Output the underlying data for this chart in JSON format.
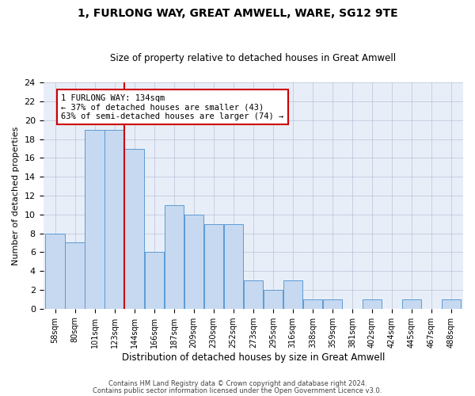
{
  "title": "1, FURLONG WAY, GREAT AMWELL, WARE, SG12 9TE",
  "subtitle": "Size of property relative to detached houses in Great Amwell",
  "xlabel": "Distribution of detached houses by size in Great Amwell",
  "ylabel": "Number of detached properties",
  "bin_labels": [
    "58sqm",
    "80sqm",
    "101sqm",
    "123sqm",
    "144sqm",
    "166sqm",
    "187sqm",
    "209sqm",
    "230sqm",
    "252sqm",
    "273sqm",
    "295sqm",
    "316sqm",
    "338sqm",
    "359sqm",
    "381sqm",
    "402sqm",
    "424sqm",
    "445sqm",
    "467sqm",
    "488sqm"
  ],
  "bar_values": [
    8,
    7,
    19,
    19,
    17,
    6,
    11,
    10,
    9,
    9,
    3,
    2,
    3,
    1,
    1,
    0,
    1,
    0,
    1,
    0,
    1
  ],
  "bar_color": "#c6d9f0",
  "bar_edge_color": "#5b9bd5",
  "property_size_idx": 3.5,
  "vline_color": "#cc0000",
  "annotation_text": "1 FURLONG WAY: 134sqm\n← 37% of detached houses are smaller (43)\n63% of semi-detached houses are larger (74) →",
  "annotation_box_color": "#ffffff",
  "annotation_box_edge": "#cc0000",
  "ylim": [
    0,
    24
  ],
  "yticks": [
    0,
    2,
    4,
    6,
    8,
    10,
    12,
    14,
    16,
    18,
    20,
    22,
    24
  ],
  "footer1": "Contains HM Land Registry data © Crown copyright and database right 2024.",
  "footer2": "Contains public sector information licensed under the Open Government Licence v3.0.",
  "plot_bg_color": "#e8eef8"
}
